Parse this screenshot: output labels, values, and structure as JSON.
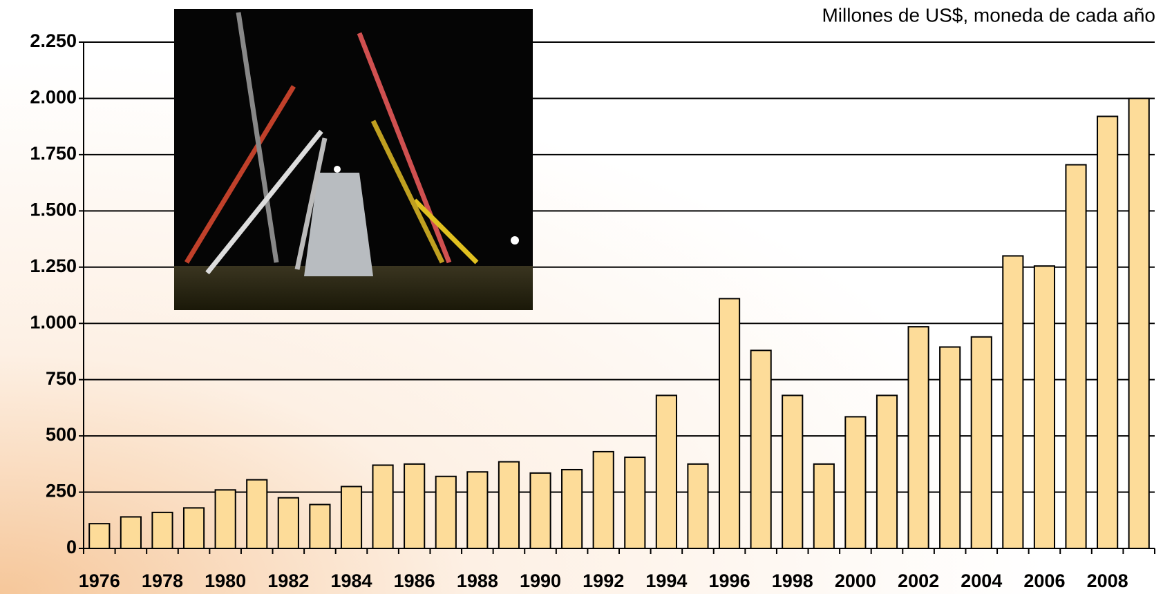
{
  "chart_data": {
    "type": "bar",
    "subtitle": "Millones de US$, moneda de cada año",
    "categories": [
      "1976",
      null,
      "1978",
      null,
      "1980",
      null,
      "1982",
      null,
      "1984",
      null,
      "1986",
      null,
      "1988",
      null,
      "1990",
      null,
      "1992",
      null,
      "1994",
      null,
      "1996",
      null,
      "1998",
      null,
      "2000",
      null,
      "2002",
      null,
      "2004",
      null,
      "2006",
      null,
      "2008",
      null
    ],
    "values": [
      110,
      140,
      160,
      180,
      260,
      305,
      225,
      195,
      275,
      370,
      375,
      320,
      340,
      385,
      335,
      350,
      430,
      405,
      680,
      375,
      1110,
      880,
      680,
      375,
      585,
      680,
      985,
      895,
      940,
      1300,
      1255,
      1705,
      1920,
      2000
    ],
    "color": "#fddc99",
    "ylim": [
      0,
      2250
    ],
    "yticks": [
      0,
      250,
      500,
      750,
      {
        "value": 1000,
        "label": "1.000"
      },
      {
        "value": 1250,
        "label": "1.250"
      },
      {
        "value": 1500,
        "label": "1.500"
      },
      {
        "value": 1750,
        "label": "1.750"
      },
      {
        "value": 2000,
        "label": "2.000"
      },
      {
        "value": 2250,
        "label": "2.250"
      }
    ],
    "grid": true
  }
}
